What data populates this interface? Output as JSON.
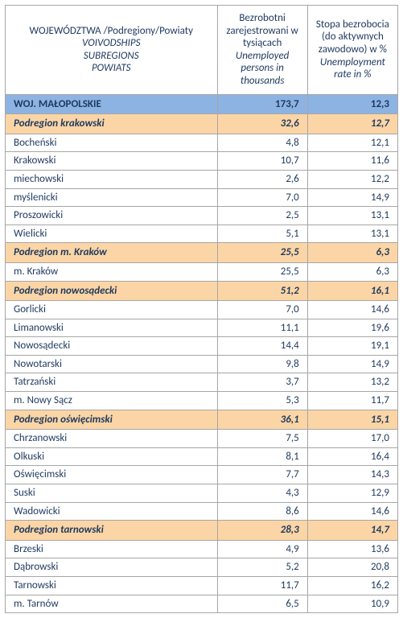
{
  "header": {
    "col_name": {
      "lines": [
        {
          "text": "WOJEWÓDZTWA /Podregiony/Powiaty",
          "italic": false
        },
        {
          "text": "VOIVODSHIPS",
          "italic": true
        },
        {
          "text": "SUBREGIONS",
          "italic": true
        },
        {
          "text": "POWIATS",
          "italic": true
        }
      ]
    },
    "col_v1": {
      "lines": [
        {
          "text": "Bezrobotni zarejestrowani w tysiącach",
          "italic": false
        },
        {
          "text": "Unemployed persons in thousands",
          "italic": true
        }
      ]
    },
    "col_v2": {
      "lines": [
        {
          "text": "Stopa bezrobocia  (do aktywnych zawodowo) w %",
          "italic": false
        },
        {
          "text": "Unemployment rate in  %",
          "italic": true
        }
      ]
    }
  },
  "colors": {
    "voivod_bg": "#8db3e2",
    "subregion_bg": "#fbd5a5",
    "border": "#a6a6a6",
    "text": "#1f3a5f"
  },
  "rows": [
    {
      "type": "voivod",
      "name": "WOJ. MAŁOPOLSKIE",
      "v1": "173,7",
      "v2": "12,3"
    },
    {
      "type": "subregion",
      "name": "Podregion krakowski",
      "v1": "32,6",
      "v2": "12,7"
    },
    {
      "type": "poviat",
      "name": "Bocheński",
      "v1": "4,8",
      "v2": "12,1"
    },
    {
      "type": "poviat",
      "name": "Krakowski",
      "v1": "10,7",
      "v2": "11,6"
    },
    {
      "type": "poviat",
      "name": "miechowski",
      "v1": "2,6",
      "v2": "12,2"
    },
    {
      "type": "poviat",
      "name": "myślenicki",
      "v1": "7,0",
      "v2": "14,9"
    },
    {
      "type": "poviat",
      "name": "Proszowicki",
      "v1": "2,5",
      "v2": "13,1"
    },
    {
      "type": "poviat",
      "name": "Wielicki",
      "v1": "5,1",
      "v2": "13,1"
    },
    {
      "type": "subregion",
      "name": "Podregion m. Kraków",
      "v1": "25,5",
      "v2": "6,3"
    },
    {
      "type": "poviat",
      "name": "m. Kraków",
      "v1": "25,5",
      "v2": "6,3"
    },
    {
      "type": "subregion",
      "name": "Podregion nowosądecki",
      "v1": "51,2",
      "v2": "16,1"
    },
    {
      "type": "poviat",
      "name": "Gorlicki",
      "v1": "7,0",
      "v2": "14,6"
    },
    {
      "type": "poviat",
      "name": "Limanowski",
      "v1": "11,1",
      "v2": "19,6"
    },
    {
      "type": "poviat",
      "name": "Nowosądecki",
      "v1": "14,4",
      "v2": "19,1"
    },
    {
      "type": "poviat",
      "name": "Nowotarski",
      "v1": "9,8",
      "v2": "14,9"
    },
    {
      "type": "poviat",
      "name": "Tatrzański",
      "v1": "3,7",
      "v2": "13,2"
    },
    {
      "type": "poviat",
      "name": "m. Nowy Sącz",
      "v1": "5,3",
      "v2": "11,7"
    },
    {
      "type": "subregion",
      "name": "Podregion oświęcimski",
      "v1": "36,1",
      "v2": "15,1"
    },
    {
      "type": "poviat",
      "name": "Chrzanowski",
      "v1": "7,5",
      "v2": "17,0"
    },
    {
      "type": "poviat",
      "name": "Olkuski",
      "v1": "8,1",
      "v2": "16,4"
    },
    {
      "type": "poviat",
      "name": "Oświęcimski",
      "v1": "7,7",
      "v2": "14,3"
    },
    {
      "type": "poviat",
      "name": "Suski",
      "v1": "4,3",
      "v2": "12,9"
    },
    {
      "type": "poviat",
      "name": "Wadowicki",
      "v1": "8,6",
      "v2": "14,6"
    },
    {
      "type": "subregion",
      "name": "Podregion tarnowski",
      "v1": "28,3",
      "v2": "14,7"
    },
    {
      "type": "poviat",
      "name": "Brzeski",
      "v1": "4,9",
      "v2": "13,6"
    },
    {
      "type": "poviat",
      "name": "Dąbrowski",
      "v1": "5,2",
      "v2": "20,8"
    },
    {
      "type": "poviat",
      "name": "Tarnowski",
      "v1": "11,7",
      "v2": "16,2"
    },
    {
      "type": "poviat",
      "name": "m. Tarnów",
      "v1": "6,5",
      "v2": "10,9"
    }
  ]
}
